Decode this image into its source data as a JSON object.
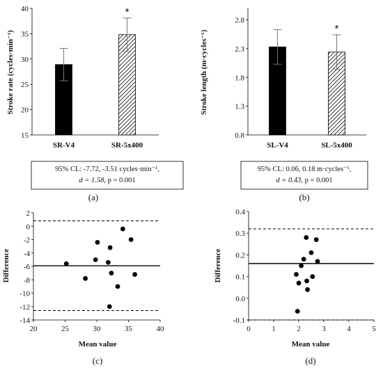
{
  "chart_data": [
    {
      "panel": "(a)",
      "type": "bar",
      "categories": [
        "SR-V4",
        "SR-5x400"
      ],
      "values": [
        28.9,
        34.8
      ],
      "error": [
        3.2,
        3.3
      ],
      "ylim": [
        15,
        40
      ],
      "yticks": [
        15,
        20,
        25,
        30,
        35,
        40
      ],
      "ylabel": "Stroke rate (cycles·min⁻¹)",
      "bar_styles": [
        "solid",
        "hatched"
      ],
      "significance": [
        "",
        "*"
      ],
      "stats_box": {
        "line1": "95% CL: -7.72, -3.51 cycles·min⁻¹,",
        "line2_d": "d = 1.58, ",
        "line2_p": "p = 0.001"
      }
    },
    {
      "panel": "(b)",
      "type": "bar",
      "categories": [
        "SL-V4",
        "SL-5x400"
      ],
      "values": [
        2.33,
        2.24
      ],
      "error": [
        0.3,
        0.3
      ],
      "ylim": [
        0.8,
        3.0
      ],
      "yticks": [
        0.8,
        1.3,
        1.8,
        2.3,
        2.8
      ],
      "ylabel": "Stroke length (m·cycles⁻¹)",
      "bar_styles": [
        "solid",
        "hatched"
      ],
      "significance": [
        "",
        "*"
      ],
      "stats_box": {
        "line1": "95% CL: 0.06, 0.18 m·cycles⁻¹,",
        "line2_d": "d = 0.43, ",
        "line2_p": "p = 0.001"
      }
    },
    {
      "panel": "(c)",
      "type": "scatter",
      "x": [
        25.2,
        28.2,
        29.8,
        30.1,
        31.8,
        32.0,
        32.1,
        32.3,
        33.3,
        34.1,
        35.4,
        36.0
      ],
      "y": [
        -5.6,
        -7.8,
        -5.0,
        -2.4,
        -5.4,
        -12.0,
        -3.2,
        -7.0,
        -9.0,
        -0.4,
        -2.0,
        -7.2
      ],
      "mean_line": -5.9,
      "limits": [
        0.8,
        -12.6
      ],
      "xlim": [
        20,
        40
      ],
      "ylim": [
        -14,
        2
      ],
      "xticks": [
        20,
        25,
        30,
        35,
        40
      ],
      "yticks": [
        2,
        0,
        -2,
        -4,
        -6,
        -8,
        -10,
        -12,
        -14
      ],
      "xlabel": "Mean value",
      "ylabel": "Difference"
    },
    {
      "panel": "(d)",
      "type": "scatter",
      "x": [
        1.9,
        1.95,
        2.0,
        2.1,
        2.2,
        2.3,
        2.32,
        2.35,
        2.5,
        2.55,
        2.7,
        2.75
      ],
      "y": [
        0.11,
        -0.06,
        0.07,
        0.15,
        0.18,
        0.28,
        0.08,
        0.04,
        0.21,
        0.1,
        0.27,
        0.17
      ],
      "mean_line": 0.16,
      "limits": [
        0.32,
        -0.1
      ],
      "xlim": [
        0,
        5
      ],
      "ylim": [
        -0.1,
        0.4
      ],
      "xticks": [
        0,
        1,
        2,
        3,
        4,
        5
      ],
      "yticks": [
        0.4,
        0.3,
        0.2,
        0.1,
        0.0,
        -0.1
      ],
      "ytick_labels": [
        "0.4",
        "0.3",
        "0.2",
        "0.1",
        "0.0",
        "-0.1"
      ],
      "xlabel": "Mean value",
      "ylabel": "Difference"
    }
  ]
}
